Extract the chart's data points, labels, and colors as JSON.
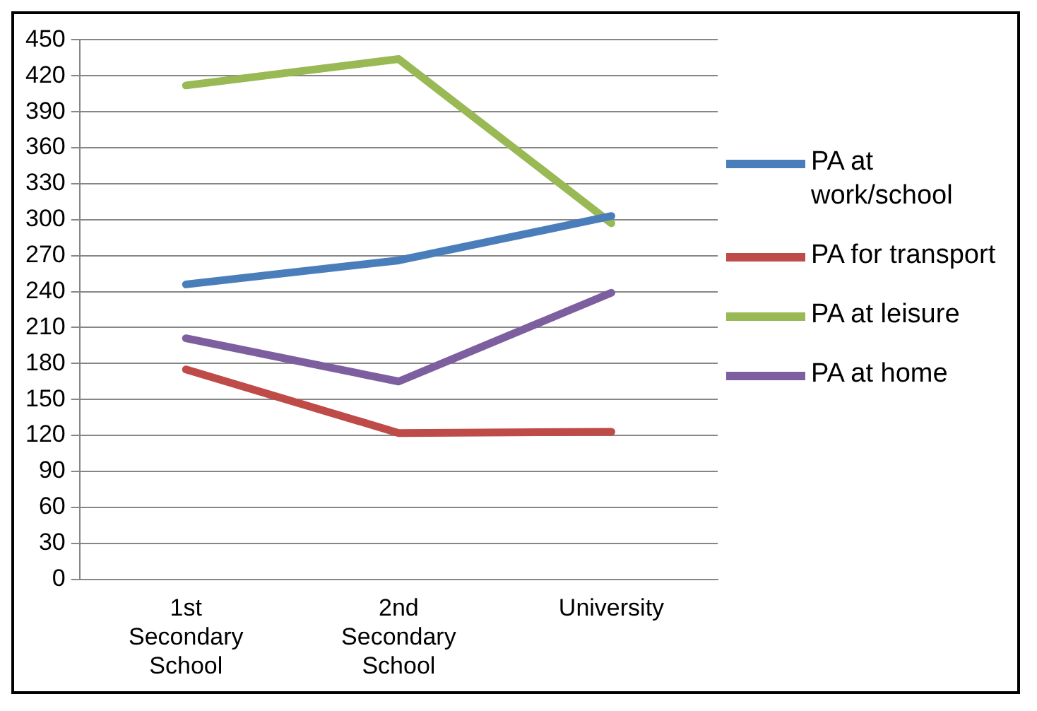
{
  "chart_data": {
    "type": "line",
    "categories": [
      "1st Secondary School",
      "2nd Secondary School",
      "University"
    ],
    "series": [
      {
        "name": "PA at work/school",
        "color": "#4a7ebb",
        "values": [
          246,
          266,
          303
        ]
      },
      {
        "name": "PA for transport",
        "color": "#be4b48",
        "values": [
          175,
          122,
          123
        ]
      },
      {
        "name": "PA at leisure",
        "color": "#98b954",
        "values": [
          412,
          434,
          297
        ]
      },
      {
        "name": "PA at home",
        "color": "#7d5fa0",
        "values": [
          201,
          165,
          239
        ]
      }
    ],
    "ylim": [
      0,
      450
    ],
    "yticks": [
      0,
      30,
      60,
      90,
      120,
      150,
      180,
      210,
      240,
      270,
      300,
      330,
      360,
      390,
      420,
      450
    ],
    "grid": "y",
    "legend": "right",
    "marker": "none",
    "line_style": "solid"
  }
}
